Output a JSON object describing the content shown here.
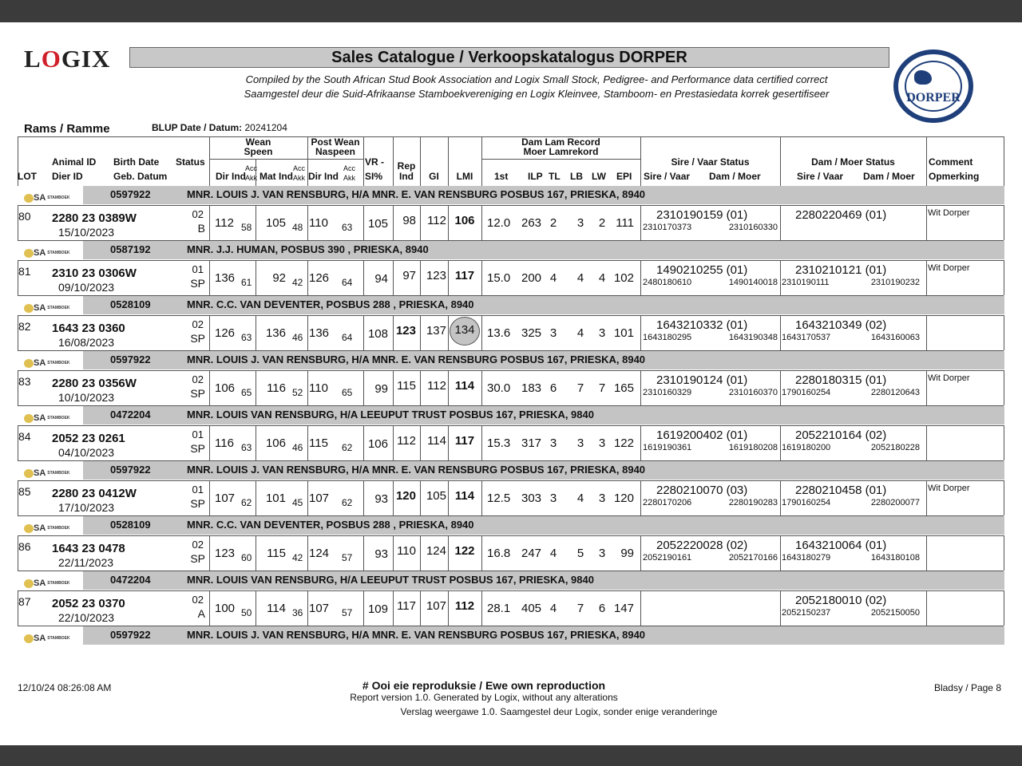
{
  "header": {
    "logo_text": "LOGIX",
    "title": "Sales Catalogue / Verkoopskatalogus DORPER",
    "subtitle_en": "Compiled by the South African Stud Book Association and Logix Small Stock, Pedigree- and Performance data certified correct",
    "subtitle_af": "Saamgestel deur die Suid-Afrikaanse Stamboekvereniging en Logix Kleinvee, Stamboom- en Prestasiedata korrek gesertifiseer",
    "dorper_logo_text": "DORPER",
    "section": "Rams / Ramme",
    "blup_label": "BLUP Date / Datum:",
    "blup_value": "20241204"
  },
  "columns": {
    "lot": "LOT",
    "animal_id": "Animal ID",
    "dier_id": "Dier ID",
    "birth_date": "Birth Date",
    "geb_datum": "Geb. Datum",
    "status": "Status",
    "wean": "Wean",
    "speen": "Speen",
    "post_wean": "Post Wean",
    "naspeen": "Naspeen",
    "dir_ind": "Dir Ind",
    "mat_ind": "Mat Ind",
    "acc": "Acc",
    "akk": "Akk",
    "vr": "VR -",
    "si": "SI%",
    "rep": "Rep",
    "ind": "Ind",
    "gi": "GI",
    "lmi": "LMI",
    "dam_lam": "Dam Lam Record",
    "moer_lam": "Moer Lamrekord",
    "first": "1st",
    "ilp": "ILP",
    "tl": "TL",
    "lb": "LB",
    "lw": "LW",
    "epi": "EPI",
    "sire_status": "Sire / Vaar Status",
    "dam_status": "Dam / Moer Status",
    "sire_vaar": "Sire / Vaar",
    "dam_moer": "Dam / Moer",
    "comment": "Comment",
    "opmerking": "Opmerking"
  },
  "stud_logo_text": "SA STAMBOEK STUD BOOK",
  "rows": [
    {
      "breeder_id": "0597922",
      "breeder": "MNR.  LOUIS J. VAN RENSBURG, H/A MNR. E. VAN RENSBURG POSBUS 167, PRIESKA, 8940",
      "lot": "80",
      "id": "2280 23 0389W",
      "date": "15/10/2023",
      "code": "02",
      "status": "B",
      "wdir": "112",
      "wdir_acc": "58",
      "wmat": "105",
      "wmat_acc": "48",
      "pw": "110",
      "pw_acc": "63",
      "vr": "105",
      "rep": "98",
      "gi": "112",
      "lmi": "106",
      "first": "12.0",
      "ilp": "263",
      "tl": "2",
      "lb": "3",
      "lw": "2",
      "epi": "111",
      "sire": "2310190159 (01)",
      "sire_s": "2310170373",
      "sire_d": "2310160330",
      "dam": "2280220469 (01)",
      "dam_s": "",
      "dam_d": "",
      "comment": "Wit Dorper"
    },
    {
      "breeder_id": "0587192",
      "breeder": "MNR. J.J. HUMAN, POSBUS 390 , PRIESKA, 8940",
      "lot": "81",
      "id": "2310 23 0306W",
      "date": "09/10/2023",
      "code": "01",
      "status": "SP",
      "wdir": "136",
      "wdir_acc": "61",
      "wmat": "92",
      "wmat_acc": "42",
      "pw": "126",
      "pw_acc": "64",
      "vr": "94",
      "rep": "97",
      "gi": "123",
      "lmi": "117",
      "first": "15.0",
      "ilp": "200",
      "tl": "4",
      "lb": "4",
      "lw": "4",
      "epi": "102",
      "sire": "1490210255 (01)",
      "sire_s": "2480180610",
      "sire_d": "1490140018",
      "dam": "2310210121 (01)",
      "dam_s": "2310190111",
      "dam_d": "2310190232",
      "comment": "Wit Dorper"
    },
    {
      "breeder_id": "0528109",
      "breeder": "MNR. C.C. VAN DEVENTER, POSBUS 288 , PRIESKA, 8940",
      "lot": "82",
      "id": "1643 23 0360",
      "date": "16/08/2023",
      "code": "02",
      "status": "SP",
      "wdir": "126",
      "wdir_acc": "63",
      "wmat": "136",
      "wmat_acc": "46",
      "pw": "136",
      "pw_acc": "64",
      "vr": "108",
      "rep": "123",
      "rep_bold": true,
      "gi": "137",
      "lmi": "134",
      "lmi_circled": true,
      "first": "13.6",
      "ilp": "325",
      "tl": "3",
      "lb": "4",
      "lw": "3",
      "epi": "101",
      "sire": "1643210332 (01)",
      "sire_s": "1643180295",
      "sire_d": "1643190348",
      "dam": "1643210349 (02)",
      "dam_s": "1643170537",
      "dam_d": "1643160063",
      "comment": ""
    },
    {
      "breeder_id": "0597922",
      "breeder": "MNR.  LOUIS J. VAN RENSBURG, H/A MNR. E. VAN RENSBURG POSBUS 167, PRIESKA, 8940",
      "lot": "83",
      "id": "2280 23 0356W",
      "date": "10/10/2023",
      "code": "02",
      "status": "SP",
      "wdir": "106",
      "wdir_acc": "65",
      "wmat": "116",
      "wmat_acc": "52",
      "pw": "110",
      "pw_acc": "65",
      "vr": "99",
      "rep": "115",
      "gi": "112",
      "lmi": "114",
      "first": "30.0",
      "ilp": "183",
      "tl": "6",
      "lb": "7",
      "lw": "7",
      "epi": "165",
      "sire": "2310190124 (01)",
      "sire_s": "2310160329",
      "sire_d": "2310160370",
      "dam": "2280180315 (01)",
      "dam_s": "1790160254",
      "dam_d": "2280120643",
      "comment": "Wit Dorper"
    },
    {
      "breeder_id": "0472204",
      "breeder": "MNR.  LOUIS VAN RENSBURG, H/A LEEUPUT TRUST POSBUS 167, PRIESKA, 9840",
      "lot": "84",
      "id": "2052 23 0261",
      "date": "04/10/2023",
      "code": "01",
      "status": "SP",
      "wdir": "116",
      "wdir_acc": "63",
      "wmat": "106",
      "wmat_acc": "46",
      "pw": "115",
      "pw_acc": "62",
      "vr": "106",
      "rep": "112",
      "gi": "114",
      "lmi": "117",
      "first": "15.3",
      "ilp": "317",
      "tl": "3",
      "lb": "3",
      "lw": "3",
      "epi": "122",
      "sire": "1619200402 (01)",
      "sire_s": "1619190361",
      "sire_d": "1619180208",
      "dam": "2052210164 (02)",
      "dam_s": "1619180200",
      "dam_d": "2052180228",
      "comment": ""
    },
    {
      "breeder_id": "0597922",
      "breeder": "MNR.  LOUIS J. VAN RENSBURG, H/A MNR. E. VAN RENSBURG POSBUS 167, PRIESKA, 8940",
      "lot": "85",
      "id": "2280 23 0412W",
      "date": "17/10/2023",
      "code": "01",
      "status": "SP",
      "wdir": "107",
      "wdir_acc": "62",
      "wmat": "101",
      "wmat_acc": "45",
      "pw": "107",
      "pw_acc": "62",
      "vr": "93",
      "rep": "120",
      "rep_bold": true,
      "gi": "105",
      "lmi": "114",
      "first": "12.5",
      "ilp": "303",
      "tl": "3",
      "lb": "4",
      "lw": "3",
      "epi": "120",
      "sire": "2280210070 (03)",
      "sire_s": "2280170206",
      "sire_d": "2280190283",
      "dam": "2280210458 (01)",
      "dam_s": "1790160254",
      "dam_d": "2280200077",
      "comment": "Wit Dorper"
    },
    {
      "breeder_id": "0528109",
      "breeder": "MNR. C.C. VAN DEVENTER, POSBUS 288 , PRIESKA, 8940",
      "lot": "86",
      "id": "1643 23 0478",
      "date": "22/11/2023",
      "code": "02",
      "status": "SP",
      "wdir": "123",
      "wdir_acc": "60",
      "wmat": "115",
      "wmat_acc": "42",
      "pw": "124",
      "pw_acc": "57",
      "vr": "93",
      "rep": "110",
      "gi": "124",
      "lmi": "122",
      "first": "16.8",
      "ilp": "247",
      "tl": "4",
      "lb": "5",
      "lw": "3",
      "epi": "99",
      "sire": "2052220028 (02)",
      "sire_s": "2052190161",
      "sire_d": "2052170166",
      "dam": "1643210064 (01)",
      "dam_s": "1643180279",
      "dam_d": "1643180108",
      "comment": ""
    },
    {
      "breeder_id": "0472204",
      "breeder": "MNR.  LOUIS VAN RENSBURG, H/A LEEUPUT TRUST POSBUS 167, PRIESKA, 9840",
      "lot": "87",
      "id": "2052 23 0370",
      "date": "22/10/2023",
      "code": "02",
      "status": "A",
      "wdir": "100",
      "wdir_acc": "50",
      "wmat": "114",
      "wmat_acc": "36",
      "pw": "107",
      "pw_acc": "57",
      "vr": "109",
      "rep": "117",
      "gi": "107",
      "lmi": "112",
      "first": "28.1",
      "ilp": "405",
      "tl": "4",
      "lb": "7",
      "lw": "6",
      "epi": "147",
      "sire": "",
      "sire_s": "",
      "sire_d": "",
      "dam": "2052180010 (02)",
      "dam_s": "2052150237",
      "dam_d": "2052150050",
      "comment": ""
    }
  ],
  "trailing_breeder": {
    "breeder_id": "0597922",
    "breeder": "MNR.  LOUIS J. VAN RENSBURG, H/A MNR. E. VAN RENSBURG POSBUS 167, PRIESKA, 8940"
  },
  "footer": {
    "timestamp": "12/10/24 08:26:08 AM",
    "notice": "# Ooi eie reproduksie / Ewe own reproduction",
    "line1": "Report version  1.0. Generated by Logix, without any alterations",
    "line2": "Verslag weergawe 1.0. Saamgestel deur Logix, sonder enige veranderinge",
    "page": "Bladsy / Page 8"
  },
  "colors": {
    "band": "#c4c4c4",
    "title_bg": "#c8c8c8",
    "dorper_blue": "#1f3f7a",
    "logix_red": "#d0202a",
    "chrome": "#3b3b3b"
  }
}
